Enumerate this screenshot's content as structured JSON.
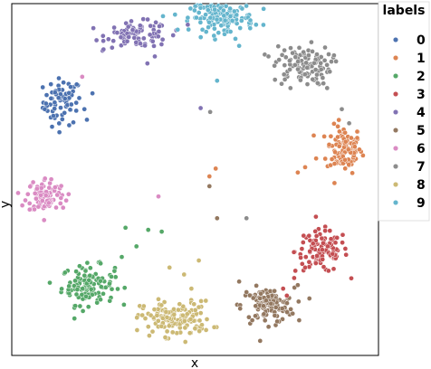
{
  "chart_data": {
    "type": "scatter",
    "title": "",
    "xlabel": "x",
    "ylabel": "y",
    "grid": false,
    "xticks": [],
    "yticks": [],
    "xlim": [
      0,
      100
    ],
    "ylim": [
      0,
      100
    ],
    "legend": {
      "title": "labels",
      "placement": "right-outside"
    },
    "clusters": [
      {
        "label": "0",
        "color": "#4c72b0",
        "center": [
          13.8,
          72.1
        ],
        "spread": [
          2.6,
          3.3
        ],
        "count": 70
      },
      {
        "label": "1",
        "color": "#dd8452",
        "center": [
          90.7,
          58.7
        ],
        "spread": [
          2.4,
          3.3
        ],
        "count": 110
      },
      {
        "label": "2",
        "color": "#55a868",
        "center": [
          20.8,
          20.0
        ],
        "spread": [
          3.6,
          2.8
        ],
        "count": 120
      },
      {
        "label": "3",
        "color": "#c44e52",
        "center": [
          84.5,
          29.6
        ],
        "spread": [
          3.6,
          3.0
        ],
        "count": 110
      },
      {
        "label": "4",
        "color": "#8172b3",
        "center": [
          34.5,
          91.2
        ],
        "spread": [
          4.3,
          1.8
        ],
        "count": 90
      },
      {
        "label": "5",
        "color": "#937860",
        "center": [
          69.8,
          14.2
        ],
        "spread": [
          3.6,
          2.5
        ],
        "count": 120
      },
      {
        "label": "6",
        "color": "#da8bc3",
        "center": [
          9.3,
          45.6
        ],
        "spread": [
          2.6,
          2.5
        ],
        "count": 90
      },
      {
        "label": "7",
        "color": "#8c8c8c",
        "center": [
          79.2,
          82.5
        ],
        "spread": [
          3.9,
          2.8
        ],
        "count": 110
      },
      {
        "label": "8",
        "color": "#ccb974",
        "center": [
          44.9,
          10.4
        ],
        "spread": [
          4.8,
          2.5
        ],
        "count": 140
      },
      {
        "label": "9",
        "color": "#64b5cd",
        "center": [
          57.4,
          96.1
        ],
        "spread": [
          4.3,
          2.0
        ],
        "count": 140
      }
    ],
    "stray_points": [
      {
        "label": "0",
        "points": [
          [
            19.8,
            70.0
          ],
          [
            22.0,
            74.5
          ],
          [
            20.5,
            67.0
          ],
          [
            9.0,
            70.0
          ],
          [
            11.0,
            65.0
          ]
        ]
      },
      {
        "label": "1",
        "points": [
          [
            55.6,
            53.1
          ],
          [
            53.9,
            50.9
          ],
          [
            80.0,
            53.5
          ],
          [
            78.0,
            52.0
          ],
          [
            83.0,
            56.0
          ],
          [
            88.0,
            49.0
          ]
        ]
      },
      {
        "label": "2",
        "points": [
          [
            31.0,
            36.3
          ],
          [
            37.2,
            35.7
          ],
          [
            40.9,
            35.2
          ],
          [
            34.0,
            31.0
          ],
          [
            30.0,
            28.0
          ],
          [
            28.0,
            24.0
          ]
        ]
      },
      {
        "label": "3",
        "points": [
          [
            77.0,
            22.0
          ],
          [
            74.0,
            19.0
          ],
          [
            75.0,
            17.0
          ],
          [
            80.0,
            25.0
          ]
        ]
      },
      {
        "label": "4",
        "points": [
          [
            25.0,
            87.0
          ],
          [
            44.0,
            91.0
          ],
          [
            48.0,
            94.0
          ],
          [
            51.5,
            70.3
          ],
          [
            37.0,
            83.0
          ],
          [
            39.0,
            85.0
          ]
        ]
      },
      {
        "label": "5",
        "points": [
          [
            53.9,
            48.1
          ],
          [
            56.0,
            39.0
          ],
          [
            62.0,
            21.0
          ],
          [
            64.0,
            18.0
          ],
          [
            78.0,
            20.0
          ]
        ]
      },
      {
        "label": "6",
        "points": [
          [
            19.2,
            79.2
          ],
          [
            40.0,
            45.2
          ],
          [
            5.0,
            48.0
          ],
          [
            14.0,
            42.0
          ]
        ]
      },
      {
        "label": "7",
        "points": [
          [
            54.1,
            69.2
          ],
          [
            64.0,
            39.0
          ],
          [
            70.0,
            85.0
          ],
          [
            76.0,
            76.0
          ],
          [
            86.0,
            76.0
          ],
          [
            90.0,
            70.0
          ],
          [
            92.0,
            66.0
          ]
        ]
      },
      {
        "label": "8",
        "points": [
          [
            51.0,
            27.0
          ],
          [
            49.0,
            19.0
          ],
          [
            47.0,
            23.0
          ],
          [
            40.0,
            16.0
          ],
          [
            36.0,
            14.0
          ],
          [
            43.0,
            25.0
          ]
        ]
      },
      {
        "label": "9",
        "points": [
          [
            56.0,
            78.1
          ],
          [
            61.0,
            90.0
          ],
          [
            53.0,
            92.0
          ],
          [
            65.0,
            93.0
          ],
          [
            48.0,
            96.0
          ],
          [
            62.0,
            88.0
          ]
        ]
      }
    ]
  }
}
